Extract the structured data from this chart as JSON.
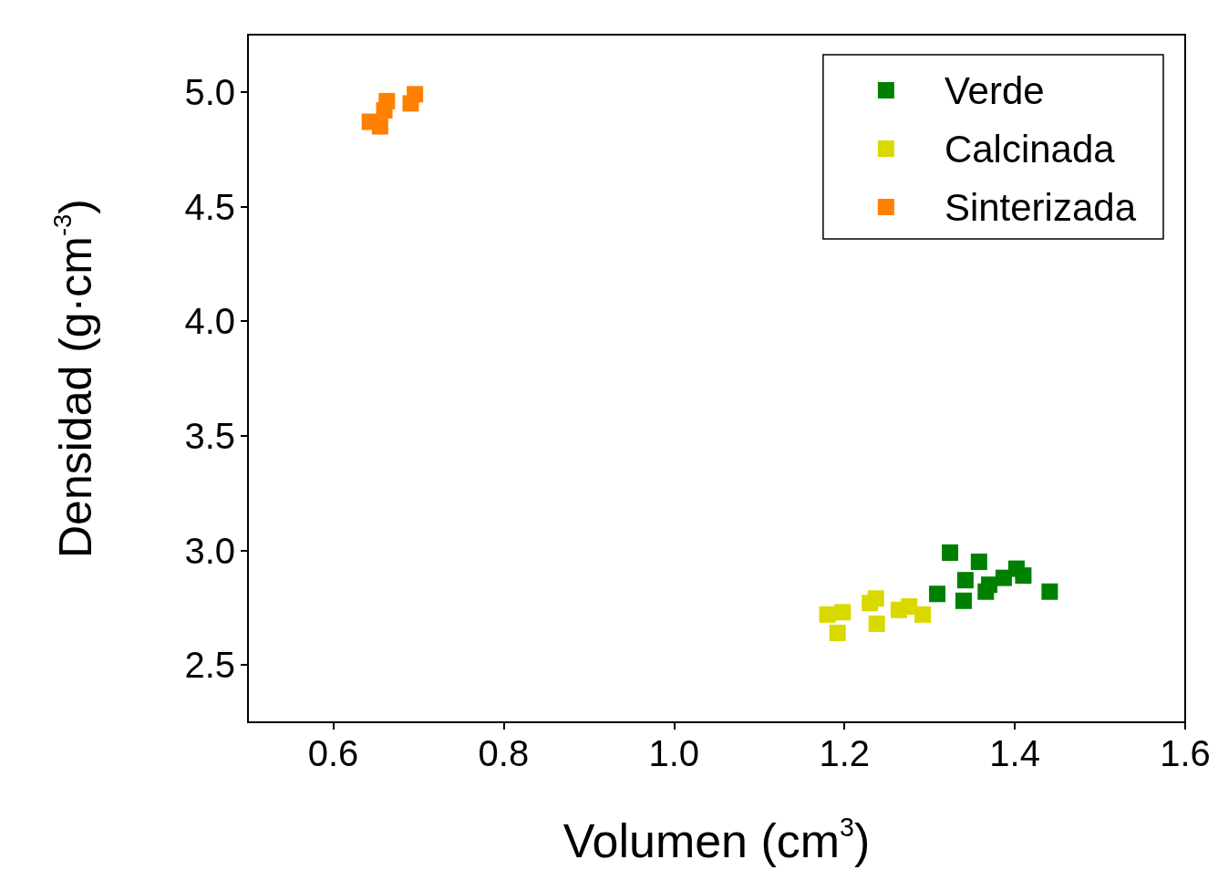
{
  "chart_data": {
    "type": "scatter",
    "xlabel": "Volumen (cm$^{3}$)",
    "ylabel": "Densidad (g·cm$^{-3}$)",
    "marker": "square",
    "legend": "top right",
    "grid": false,
    "xlim": [
      0.5,
      1.6
    ],
    "xticks": [
      0.6,
      0.8,
      {
        "value": 1,
        "label": "1.0"
      },
      1.2,
      1.4,
      1.6
    ],
    "ylim": [
      2.25,
      5.25
    ],
    "yticks": [
      2.5,
      {
        "value": 3,
        "label": "3.0"
      },
      3.5,
      {
        "value": 4,
        "label": "4.0"
      },
      4.5,
      {
        "value": 5,
        "label": "5.0"
      }
    ],
    "series": [
      {
        "name": "Verde",
        "color": "#008000",
        "x": [
          1.324,
          1.358,
          1.309,
          1.34,
          1.342,
          1.366,
          1.402,
          1.41,
          1.387,
          1.441,
          1.37
        ],
        "values": [
          2.99,
          2.95,
          2.81,
          2.78,
          2.87,
          2.82,
          2.92,
          2.89,
          2.88,
          2.82,
          2.85
        ]
      },
      {
        "name": "Calcinada",
        "color": "#d9d900",
        "x": [
          1.18,
          1.198,
          1.192,
          1.237,
          1.23,
          1.238,
          1.264,
          1.292,
          1.276
        ],
        "values": [
          2.72,
          2.73,
          2.64,
          2.79,
          2.77,
          2.68,
          2.74,
          2.72,
          2.755
        ]
      },
      {
        "name": "Sinterizada",
        "color": "#ff8000",
        "x": [
          0.643,
          0.655,
          0.66,
          0.663,
          0.691,
          0.696
        ],
        "values": [
          4.87,
          4.85,
          4.92,
          4.96,
          4.95,
          4.99
        ]
      }
    ]
  }
}
